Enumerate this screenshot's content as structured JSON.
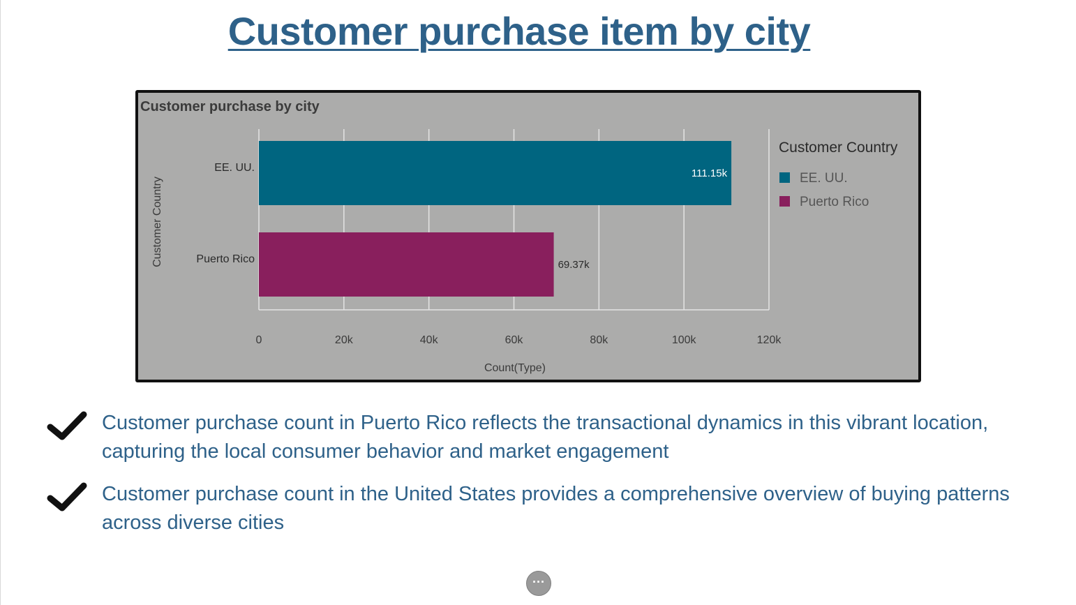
{
  "slide": {
    "title": "Customer purchase item by city"
  },
  "chart_data": {
    "type": "bar",
    "orientation": "horizontal",
    "title": "Customer purchase by city",
    "xlabel": "Count(Type)",
    "ylabel": "Customer Country",
    "categories": [
      "EE. UU.",
      "Puerto Rico"
    ],
    "values": [
      111150,
      69370
    ],
    "data_labels": [
      "111.15k",
      "69.37k"
    ],
    "colors": [
      "#006580",
      "#891f5d"
    ],
    "xlim": [
      0,
      120000
    ],
    "x_ticks": [
      0,
      20000,
      40000,
      60000,
      80000,
      100000,
      120000
    ],
    "x_tick_labels": [
      "0",
      "20k",
      "40k",
      "60k",
      "80k",
      "100k",
      "120k"
    ],
    "grid": true,
    "legend": {
      "title": "Customer Country",
      "position": "right",
      "items": [
        "EE. UU.",
        "Puerto Rico"
      ]
    }
  },
  "bullets": [
    "Customer purchase count in Puerto Rico reflects the transactional dynamics in this vibrant location, capturing the local consumer behavior and market engagement",
    "Customer purchase count in the United States provides a comprehensive overview of buying patterns across diverse cities"
  ],
  "icons": {
    "bullet": "check-icon",
    "more": "more-icon"
  },
  "more_button_label": "···",
  "colors": {
    "title": "#2e6189",
    "chart_background": "#acacab",
    "bullet_text": "#2e6189"
  }
}
